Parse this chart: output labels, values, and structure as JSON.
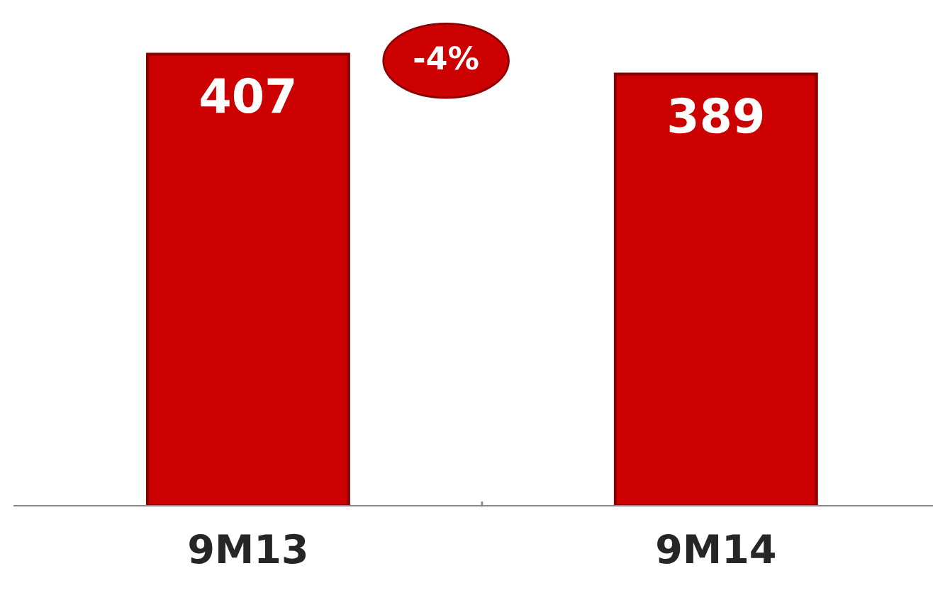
{
  "chart_data": {
    "type": "bar",
    "categories": [
      "9M13",
      "9M14"
    ],
    "values": [
      407,
      389
    ],
    "color": "#cc0000",
    "data_labels": true,
    "tick_labels": "x",
    "grid": false,
    "legend": false,
    "annotations": [
      "-4%"
    ]
  }
}
